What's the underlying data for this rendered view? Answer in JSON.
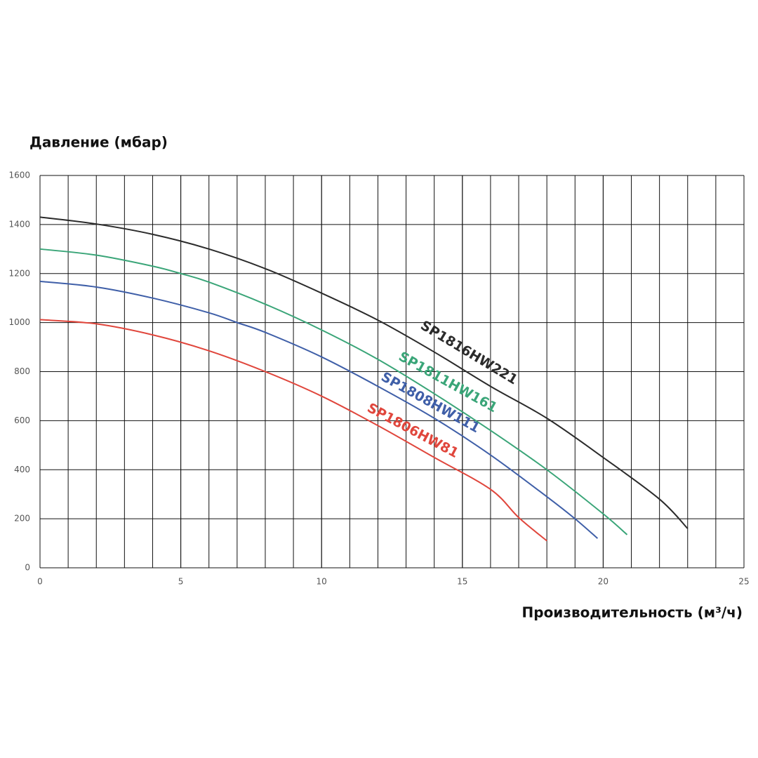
{
  "chart_data": {
    "type": "line",
    "y_label": "Давление (мбар)",
    "x_label": "Производительность (м³/ч)",
    "xlim": [
      0,
      25
    ],
    "xticks": [
      0,
      5,
      10,
      15,
      20,
      25
    ],
    "x_grid_step": 1,
    "ylim": [
      0,
      1600
    ],
    "yticks": [
      0,
      200,
      400,
      600,
      800,
      1000,
      1200,
      1400,
      1600
    ],
    "grid": true,
    "legend": "inline",
    "series": [
      {
        "name": "SP1816HW221",
        "color": "#2b2b2b",
        "x": [
          0,
          2,
          4,
          6,
          8,
          10,
          12,
          14,
          16,
          18,
          20,
          22,
          23
        ],
        "values": [
          1430,
          1402,
          1360,
          1300,
          1220,
          1120,
          1010,
          880,
          740,
          610,
          450,
          280,
          160
        ]
      },
      {
        "name": "SP1811HW161",
        "color": "#3aa578",
        "x": [
          0,
          2,
          4,
          5,
          6,
          8,
          10,
          12,
          14,
          16,
          18,
          20,
          20.85
        ],
        "values": [
          1300,
          1275,
          1230,
          1200,
          1165,
          1075,
          970,
          850,
          710,
          560,
          400,
          220,
          135
        ]
      },
      {
        "name": "SP1808HW111",
        "color": "#3f5fa8",
        "x": [
          0,
          2,
          4,
          6,
          7,
          8,
          10,
          12,
          14,
          16,
          18,
          19,
          19.8
        ],
        "values": [
          1168,
          1145,
          1100,
          1040,
          1000,
          960,
          860,
          740,
          610,
          460,
          290,
          200,
          120
        ]
      },
      {
        "name": "SP1806HW81",
        "color": "#e0463c",
        "x": [
          0,
          2,
          4,
          6,
          8,
          10,
          12,
          14,
          16,
          17,
          18
        ],
        "values": [
          1012,
          995,
          950,
          885,
          800,
          700,
          580,
          450,
          320,
          205,
          110
        ]
      }
    ]
  }
}
